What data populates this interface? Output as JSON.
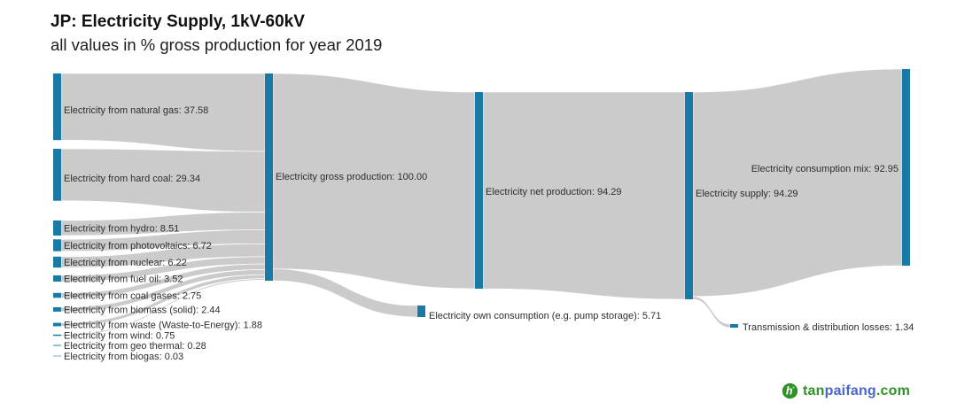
{
  "header": {
    "title": "JP: Electricity Supply, 1kV-60kV",
    "subtitle": "all values in % gross production for year 2019"
  },
  "watermark": {
    "icon": "tanpaifang-logo-icon",
    "icon_color": "#2E9226",
    "parts": [
      {
        "text": "tan",
        "color": "#2E9226"
      },
      {
        "text": "paifang",
        "color": "#4A66CC"
      },
      {
        "text": ".com",
        "color": "#2E9226"
      }
    ]
  },
  "chart_data": {
    "type": "sankey",
    "title": "JP: Electricity Supply, 1kV-60kV",
    "subtitle": "all values in % gross production for year 2019",
    "value_unit": "% gross production",
    "year": "2019",
    "node_color": "#1A79A5",
    "flow_color": "#CBCBCB",
    "label_color": "#2E2E2E",
    "nodes": [
      {
        "id": "natural_gas",
        "label": "Electricity from natural gas",
        "value": 37.58
      },
      {
        "id": "hard_coal",
        "label": "Electricity from hard coal",
        "value": 29.34
      },
      {
        "id": "hydro",
        "label": "Electricity from hydro",
        "value": 8.51
      },
      {
        "id": "photovoltaics",
        "label": "Electricity from photovoltaics",
        "value": 6.72
      },
      {
        "id": "nuclear",
        "label": "Electricity from nuclear",
        "value": 6.22
      },
      {
        "id": "fuel_oil",
        "label": "Electricity from fuel oil",
        "value": 3.52
      },
      {
        "id": "coal_gases",
        "label": "Electricity from coal gases",
        "value": 2.75
      },
      {
        "id": "biomass",
        "label": "Electricity from biomass (solid)",
        "value": 2.44
      },
      {
        "id": "waste",
        "label": "Electricity from waste (Waste-to-Energy)",
        "value": 1.88
      },
      {
        "id": "wind",
        "label": "Electricity from wind",
        "value": 0.75
      },
      {
        "id": "geo_thermal",
        "label": "Electricity from geo thermal",
        "value": 0.28
      },
      {
        "id": "biogas",
        "label": "Electricity from biogas",
        "value": 0.03
      },
      {
        "id": "gross",
        "label": "Electricity gross production",
        "value": 100.0
      },
      {
        "id": "net",
        "label": "Electricity net production",
        "value": 94.29
      },
      {
        "id": "supply",
        "label": "Electricity supply",
        "value": 94.29
      },
      {
        "id": "consumption_mix",
        "label": "Electricity consumption mix",
        "value": 92.95
      },
      {
        "id": "own_consumption",
        "label": "Electricity own consumption (e.g. pump storage)",
        "value": 5.71
      },
      {
        "id": "losses",
        "label": "Transmission & distribution losses",
        "value": 1.34
      }
    ],
    "links": [
      {
        "source": "natural_gas",
        "target": "gross",
        "value": 37.58
      },
      {
        "source": "hard_coal",
        "target": "gross",
        "value": 29.34
      },
      {
        "source": "hydro",
        "target": "gross",
        "value": 8.51
      },
      {
        "source": "photovoltaics",
        "target": "gross",
        "value": 6.72
      },
      {
        "source": "nuclear",
        "target": "gross",
        "value": 6.22
      },
      {
        "source": "fuel_oil",
        "target": "gross",
        "value": 3.52
      },
      {
        "source": "coal_gases",
        "target": "gross",
        "value": 2.75
      },
      {
        "source": "biomass",
        "target": "gross",
        "value": 2.44
      },
      {
        "source": "waste",
        "target": "gross",
        "value": 1.88
      },
      {
        "source": "wind",
        "target": "gross",
        "value": 0.75
      },
      {
        "source": "geo_thermal",
        "target": "gross",
        "value": 0.28
      },
      {
        "source": "biogas",
        "target": "gross",
        "value": 0.03
      },
      {
        "source": "gross",
        "target": "net",
        "value": 94.29
      },
      {
        "source": "gross",
        "target": "own_consumption",
        "value": 5.71
      },
      {
        "source": "net",
        "target": "supply",
        "value": 94.29
      },
      {
        "source": "supply",
        "target": "consumption_mix",
        "value": 92.95
      },
      {
        "source": "supply",
        "target": "losses",
        "value": 1.34
      }
    ]
  }
}
